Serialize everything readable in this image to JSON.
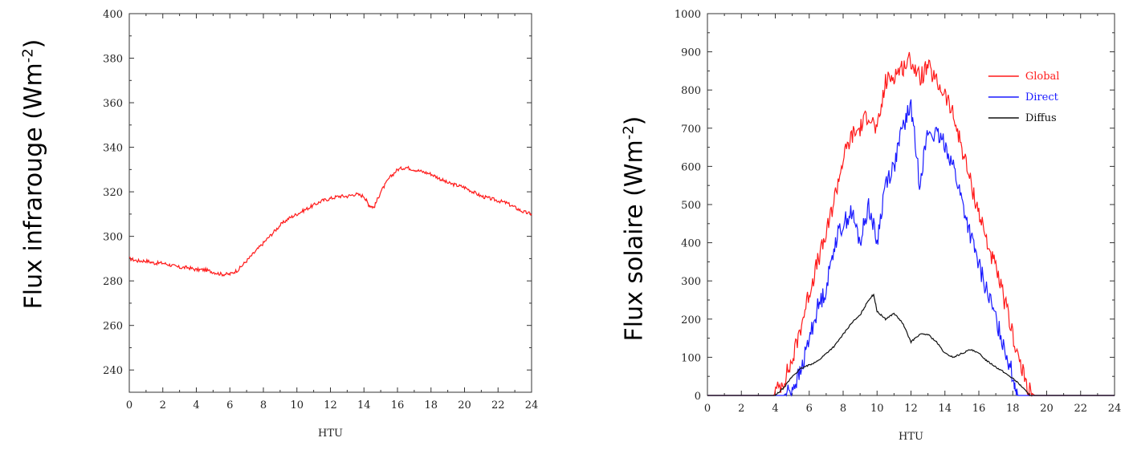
{
  "chart_data": [
    {
      "type": "line",
      "ylabel": "Flux infrarouge (Wm",
      "ylabel_sup": "-2",
      "ylabel_end": ")",
      "xlabel": "HTU",
      "xlim": [
        0,
        24
      ],
      "ylim": [
        230,
        400
      ],
      "xticks": [
        0,
        2,
        4,
        6,
        8,
        10,
        12,
        14,
        16,
        18,
        20,
        22,
        24
      ],
      "yticks": [
        240,
        260,
        280,
        300,
        320,
        340,
        360,
        380,
        400
      ],
      "series": [
        {
          "color": "#ff1a1a",
          "x": [
            0,
            0.5,
            1,
            1.5,
            2,
            2.5,
            3,
            3.5,
            4,
            4.5,
            5,
            5.5,
            6,
            6.5,
            7,
            7.5,
            8,
            8.5,
            9,
            9.5,
            10,
            10.5,
            11,
            11.5,
            12,
            12.5,
            13,
            13.5,
            14,
            14.3,
            14.6,
            15,
            15.5,
            16,
            16.5,
            17,
            17.5,
            18,
            18.5,
            19,
            19.5,
            20,
            20.5,
            21,
            21.5,
            22,
            22.5,
            23,
            23.5,
            24
          ],
          "y": [
            290,
            289,
            289,
            288,
            288,
            287,
            286,
            286,
            285,
            285,
            284,
            283,
            283,
            285,
            289,
            293,
            297,
            301,
            305,
            308,
            310,
            312,
            314,
            316,
            317,
            318,
            318,
            319,
            318,
            314,
            313,
            320,
            326,
            330,
            331,
            330,
            329,
            328,
            326,
            324,
            323,
            322,
            320,
            318,
            317,
            316,
            315,
            313,
            311,
            310
          ]
        }
      ]
    },
    {
      "type": "line",
      "ylabel": "Flux solaire (Wm",
      "ylabel_sup": "-2",
      "ylabel_end": ")",
      "xlabel": "HTU",
      "xlim": [
        0,
        24
      ],
      "ylim": [
        0,
        1000
      ],
      "xticks": [
        0,
        2,
        4,
        6,
        8,
        10,
        12,
        14,
        16,
        18,
        20,
        22,
        24
      ],
      "yticks": [
        0,
        100,
        200,
        300,
        400,
        500,
        600,
        700,
        800,
        900,
        1000
      ],
      "legend_position": "top-right",
      "series": [
        {
          "name": "Global",
          "color": "#ff1a1a",
          "x": [
            0,
            3.9,
            4.5,
            5,
            5.5,
            6,
            6.5,
            7,
            7.5,
            8,
            8.5,
            9,
            9.5,
            10,
            10.5,
            11,
            11.5,
            12,
            12.5,
            13,
            13.5,
            14,
            14.5,
            15,
            15.5,
            16,
            16.5,
            17,
            17.5,
            18,
            18.5,
            19,
            19.3,
            24
          ],
          "y": [
            0,
            0,
            40,
            90,
            180,
            270,
            350,
            420,
            520,
            620,
            680,
            700,
            740,
            690,
            820,
            840,
            860,
            880,
            830,
            860,
            820,
            790,
            730,
            650,
            560,
            480,
            400,
            330,
            250,
            160,
            70,
            10,
            0,
            0
          ]
        },
        {
          "name": "Direct",
          "color": "#1a1aff",
          "x": [
            0,
            4.5,
            5,
            5.5,
            6,
            6.5,
            7,
            7.5,
            8,
            8.5,
            9,
            9.5,
            10,
            10.5,
            11,
            11.5,
            12,
            12.5,
            13,
            13.5,
            14,
            14.5,
            15,
            15.5,
            16,
            16.5,
            17,
            17.5,
            18,
            18.3,
            24
          ],
          "y": [
            0,
            0,
            20,
            60,
            150,
            230,
            280,
            400,
            450,
            480,
            400,
            500,
            400,
            560,
            600,
            700,
            760,
            560,
            690,
            680,
            660,
            600,
            510,
            420,
            340,
            270,
            200,
            130,
            50,
            0,
            0
          ]
        },
        {
          "name": "Diffus",
          "color": "#111111",
          "x": [
            0,
            4,
            4.5,
            5,
            5.5,
            6,
            6.5,
            7,
            7.5,
            8,
            8.5,
            9,
            9.5,
            9.8,
            10,
            10.5,
            11,
            11.5,
            12,
            12.5,
            13,
            13.5,
            14,
            14.5,
            15,
            15.5,
            16,
            16.5,
            17,
            17.5,
            18,
            18.5,
            19,
            24
          ],
          "y": [
            0,
            0,
            20,
            50,
            70,
            80,
            90,
            110,
            130,
            160,
            190,
            210,
            250,
            265,
            220,
            200,
            215,
            190,
            140,
            160,
            160,
            140,
            110,
            100,
            110,
            120,
            110,
            90,
            75,
            60,
            45,
            25,
            0,
            0
          ]
        }
      ]
    }
  ]
}
